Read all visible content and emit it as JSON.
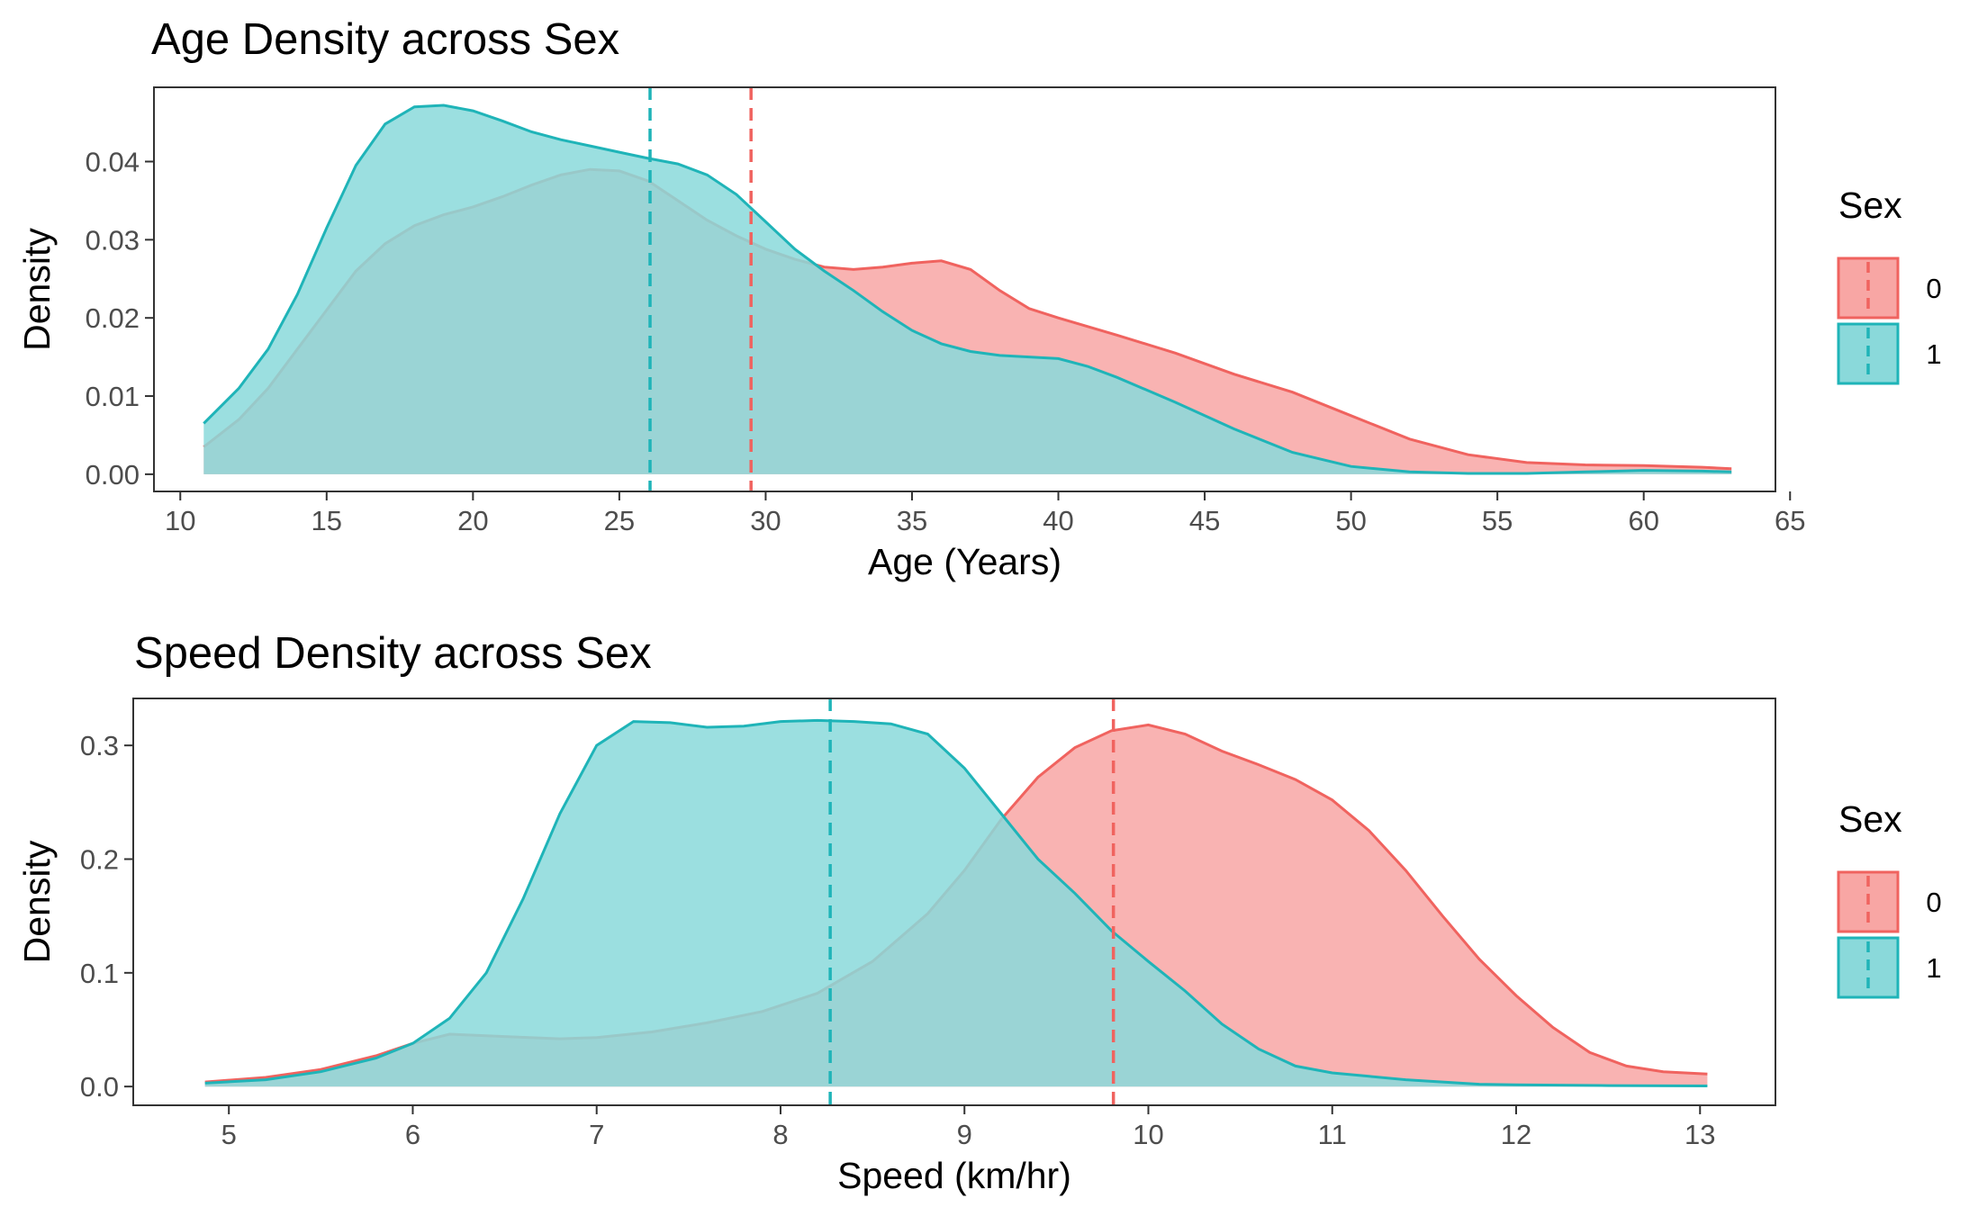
{
  "colors": {
    "sex0_line": "#F0635F",
    "sex0_fill": "#F8A6A4",
    "sex1_line": "#1FB4B8",
    "sex1_fill": "#8AD9DA",
    "overlap_fill": "#88AFAD",
    "overlap_line": "#8E8E8E",
    "axis": "#333333",
    "text": "#000000",
    "tick_text": "#4D4D4D"
  },
  "chart_data": [
    {
      "type": "area",
      "title": "Age Density across Sex",
      "xlabel": "Age (Years)",
      "ylabel": "Density",
      "xlim": [
        9.1,
        64.5
      ],
      "ylim": [
        -0.0022,
        0.0495
      ],
      "xticks": [
        10,
        15,
        20,
        25,
        30,
        35,
        40,
        45,
        50,
        55,
        60,
        65
      ],
      "xtick_labels": [
        "10",
        "15",
        "20",
        "25",
        "30",
        "35",
        "40",
        "45",
        "50",
        "55",
        "60",
        "65"
      ],
      "yticks": [
        0,
        0.01,
        0.02,
        0.03,
        0.04
      ],
      "ytick_labels": [
        "0.00",
        "0.01",
        "0.02",
        "0.03",
        "0.04"
      ],
      "grid": false,
      "legend": {
        "title": "Sex",
        "position": "right",
        "entries": [
          "0",
          "1"
        ]
      },
      "mean_lines": [
        {
          "series": "0",
          "x": 29.5
        },
        {
          "series": "1",
          "x": 26.05
        }
      ],
      "series": [
        {
          "name": "0",
          "x": [
            10.8,
            12,
            13,
            14,
            15,
            16,
            17,
            18,
            19,
            20,
            21,
            22,
            23,
            24,
            25,
            26,
            27,
            28,
            29,
            30,
            31,
            32,
            33,
            34,
            35,
            36,
            37,
            38,
            39,
            40,
            42,
            44,
            46,
            48,
            50,
            52,
            54,
            56,
            58,
            60,
            62,
            63
          ],
          "y": [
            0.0035,
            0.007,
            0.011,
            0.016,
            0.021,
            0.026,
            0.0295,
            0.0318,
            0.0332,
            0.0342,
            0.0355,
            0.037,
            0.0383,
            0.039,
            0.0388,
            0.0375,
            0.035,
            0.0325,
            0.0305,
            0.0288,
            0.0275,
            0.0265,
            0.0262,
            0.0265,
            0.027,
            0.0273,
            0.0262,
            0.0235,
            0.0212,
            0.02,
            0.0178,
            0.0155,
            0.0128,
            0.0105,
            0.0075,
            0.0045,
            0.0025,
            0.0015,
            0.0012,
            0.0011,
            0.0009,
            0.0007
          ]
        },
        {
          "name": "1",
          "x": [
            10.8,
            12,
            13,
            14,
            15,
            16,
            17,
            18,
            19,
            20,
            21,
            22,
            23,
            24,
            25,
            26,
            27,
            28,
            29,
            30,
            31,
            32,
            33,
            34,
            35,
            36,
            37,
            38,
            39,
            40,
            41,
            42,
            44,
            46,
            48,
            50,
            52,
            54,
            56,
            58,
            60,
            62,
            63
          ],
          "y": [
            0.0065,
            0.011,
            0.016,
            0.023,
            0.0315,
            0.0395,
            0.0448,
            0.047,
            0.0472,
            0.0465,
            0.0452,
            0.0438,
            0.0428,
            0.042,
            0.0412,
            0.0404,
            0.0397,
            0.0383,
            0.0358,
            0.0323,
            0.0288,
            0.026,
            0.0235,
            0.0208,
            0.0184,
            0.0167,
            0.0157,
            0.0152,
            0.015,
            0.0148,
            0.0138,
            0.0124,
            0.0092,
            0.0058,
            0.0028,
            0.001,
            0.0003,
            0.0001,
            0.0001,
            0.0003,
            0.0005,
            0.0004,
            0.0003
          ]
        }
      ]
    },
    {
      "type": "area",
      "title": "Speed Density across Sex",
      "xlabel": "Speed (km/hr)",
      "ylabel": "Density",
      "xlim": [
        4.48,
        13.41
      ],
      "ylim": [
        -0.0165,
        0.3413
      ],
      "xticks": [
        5,
        6,
        7,
        8,
        9,
        10,
        11,
        12,
        13
      ],
      "xtick_labels": [
        "5",
        "6",
        "7",
        "8",
        "9",
        "10",
        "11",
        "12",
        "13"
      ],
      "yticks": [
        0,
        0.1,
        0.2,
        0.3
      ],
      "ytick_labels": [
        "0.0",
        "0.1",
        "0.2",
        "0.3"
      ],
      "grid": false,
      "legend": {
        "title": "Sex",
        "position": "right",
        "entries": [
          "0",
          "1"
        ]
      },
      "mean_lines": [
        {
          "series": "0",
          "x": 9.81
        },
        {
          "series": "1",
          "x": 8.27
        }
      ],
      "series": [
        {
          "name": "0",
          "x": [
            4.87,
            5.2,
            5.5,
            5.8,
            6.0,
            6.2,
            6.5,
            6.8,
            7.0,
            7.3,
            7.6,
            7.9,
            8.2,
            8.5,
            8.8,
            9.0,
            9.2,
            9.4,
            9.6,
            9.8,
            10.0,
            10.2,
            10.4,
            10.6,
            10.8,
            11.0,
            11.2,
            11.4,
            11.6,
            11.8,
            12.0,
            12.2,
            12.4,
            12.6,
            12.8,
            13.04
          ],
          "y": [
            0.004,
            0.008,
            0.015,
            0.027,
            0.038,
            0.046,
            0.044,
            0.042,
            0.043,
            0.048,
            0.056,
            0.066,
            0.082,
            0.11,
            0.152,
            0.19,
            0.235,
            0.272,
            0.298,
            0.313,
            0.318,
            0.31,
            0.295,
            0.283,
            0.27,
            0.252,
            0.225,
            0.19,
            0.15,
            0.112,
            0.08,
            0.052,
            0.03,
            0.018,
            0.013,
            0.011
          ]
        },
        {
          "name": "1",
          "x": [
            4.87,
            5.2,
            5.5,
            5.8,
            6.0,
            6.2,
            6.4,
            6.6,
            6.8,
            7.0,
            7.2,
            7.4,
            7.6,
            7.8,
            8.0,
            8.2,
            8.4,
            8.6,
            8.8,
            9.0,
            9.2,
            9.4,
            9.6,
            9.8,
            10.0,
            10.2,
            10.4,
            10.6,
            10.8,
            11.0,
            11.2,
            11.4,
            11.6,
            11.8,
            12.0,
            12.5,
            13.04
          ],
          "y": [
            0.003,
            0.006,
            0.013,
            0.025,
            0.038,
            0.06,
            0.1,
            0.165,
            0.24,
            0.3,
            0.321,
            0.32,
            0.316,
            0.317,
            0.321,
            0.322,
            0.321,
            0.319,
            0.31,
            0.28,
            0.24,
            0.2,
            0.17,
            0.137,
            0.11,
            0.084,
            0.055,
            0.033,
            0.018,
            0.012,
            0.009,
            0.006,
            0.004,
            0.002,
            0.0015,
            0.0008,
            0.0005
          ]
        }
      ]
    }
  ]
}
